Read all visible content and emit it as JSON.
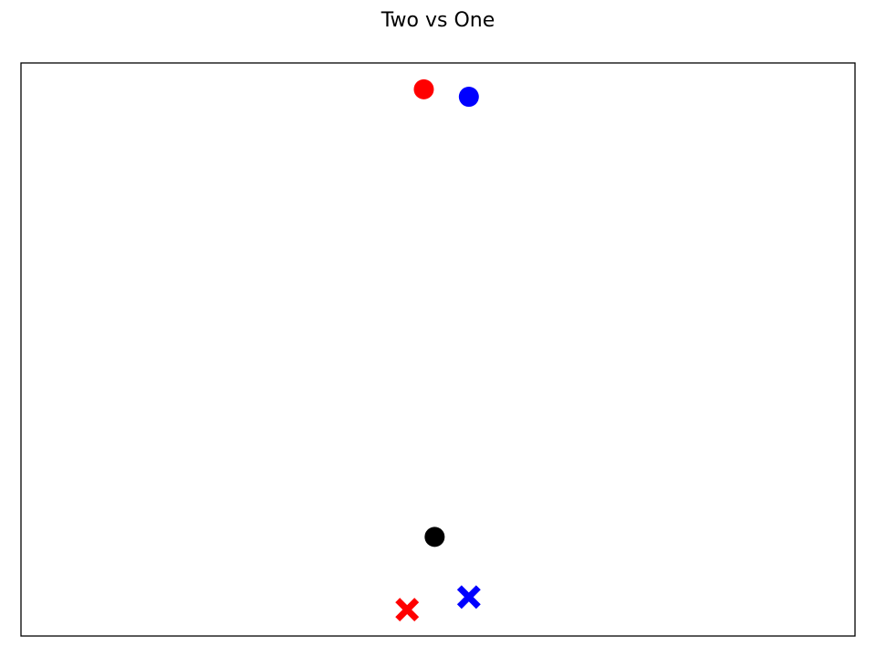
{
  "chart_data": {
    "type": "scatter",
    "title": "Two vs One",
    "xlabel": "",
    "ylabel": "",
    "xlim": [
      0,
      1
    ],
    "ylim": [
      0,
      1
    ],
    "grid": false,
    "axis_ticks": false,
    "points": [
      {
        "x": 0.483,
        "y": 0.954,
        "marker": "circle",
        "color": "#ff0000"
      },
      {
        "x": 0.537,
        "y": 0.941,
        "marker": "circle",
        "color": "#0000ff"
      },
      {
        "x": 0.496,
        "y": 0.173,
        "marker": "circle",
        "color": "#000000"
      },
      {
        "x": 0.463,
        "y": 0.046,
        "marker": "x",
        "color": "#ff0000"
      },
      {
        "x": 0.537,
        "y": 0.068,
        "marker": "x",
        "color": "#0000ff"
      }
    ]
  }
}
